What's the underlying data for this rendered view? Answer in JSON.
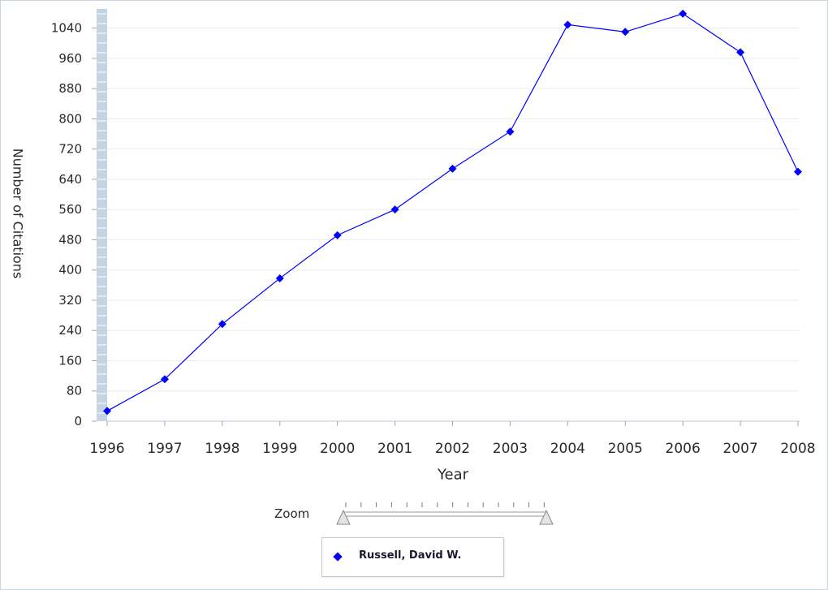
{
  "chart_data": {
    "type": "line",
    "xlabel": "Year",
    "ylabel": "Number of Citations",
    "ylim": [
      0,
      1080
    ],
    "yticks": [
      0,
      80,
      160,
      240,
      320,
      400,
      480,
      560,
      640,
      720,
      800,
      880,
      960,
      1040
    ],
    "x": [
      "1996",
      "1997",
      "1998",
      "1999",
      "2000",
      "2001",
      "2002",
      "2003",
      "2004",
      "2005",
      "2006",
      "2007",
      "2008"
    ],
    "series": [
      {
        "name": "Russell, David W.",
        "color": "#0000ff",
        "values": [
          27,
          111,
          257,
          378,
          492,
          560,
          668,
          766,
          1049,
          1030,
          1078,
          976,
          660
        ]
      }
    ],
    "grid": true,
    "legend_position": "bottom"
  },
  "zoom": {
    "label": "Zoom"
  },
  "legend": {
    "label": "Russell, David W."
  }
}
